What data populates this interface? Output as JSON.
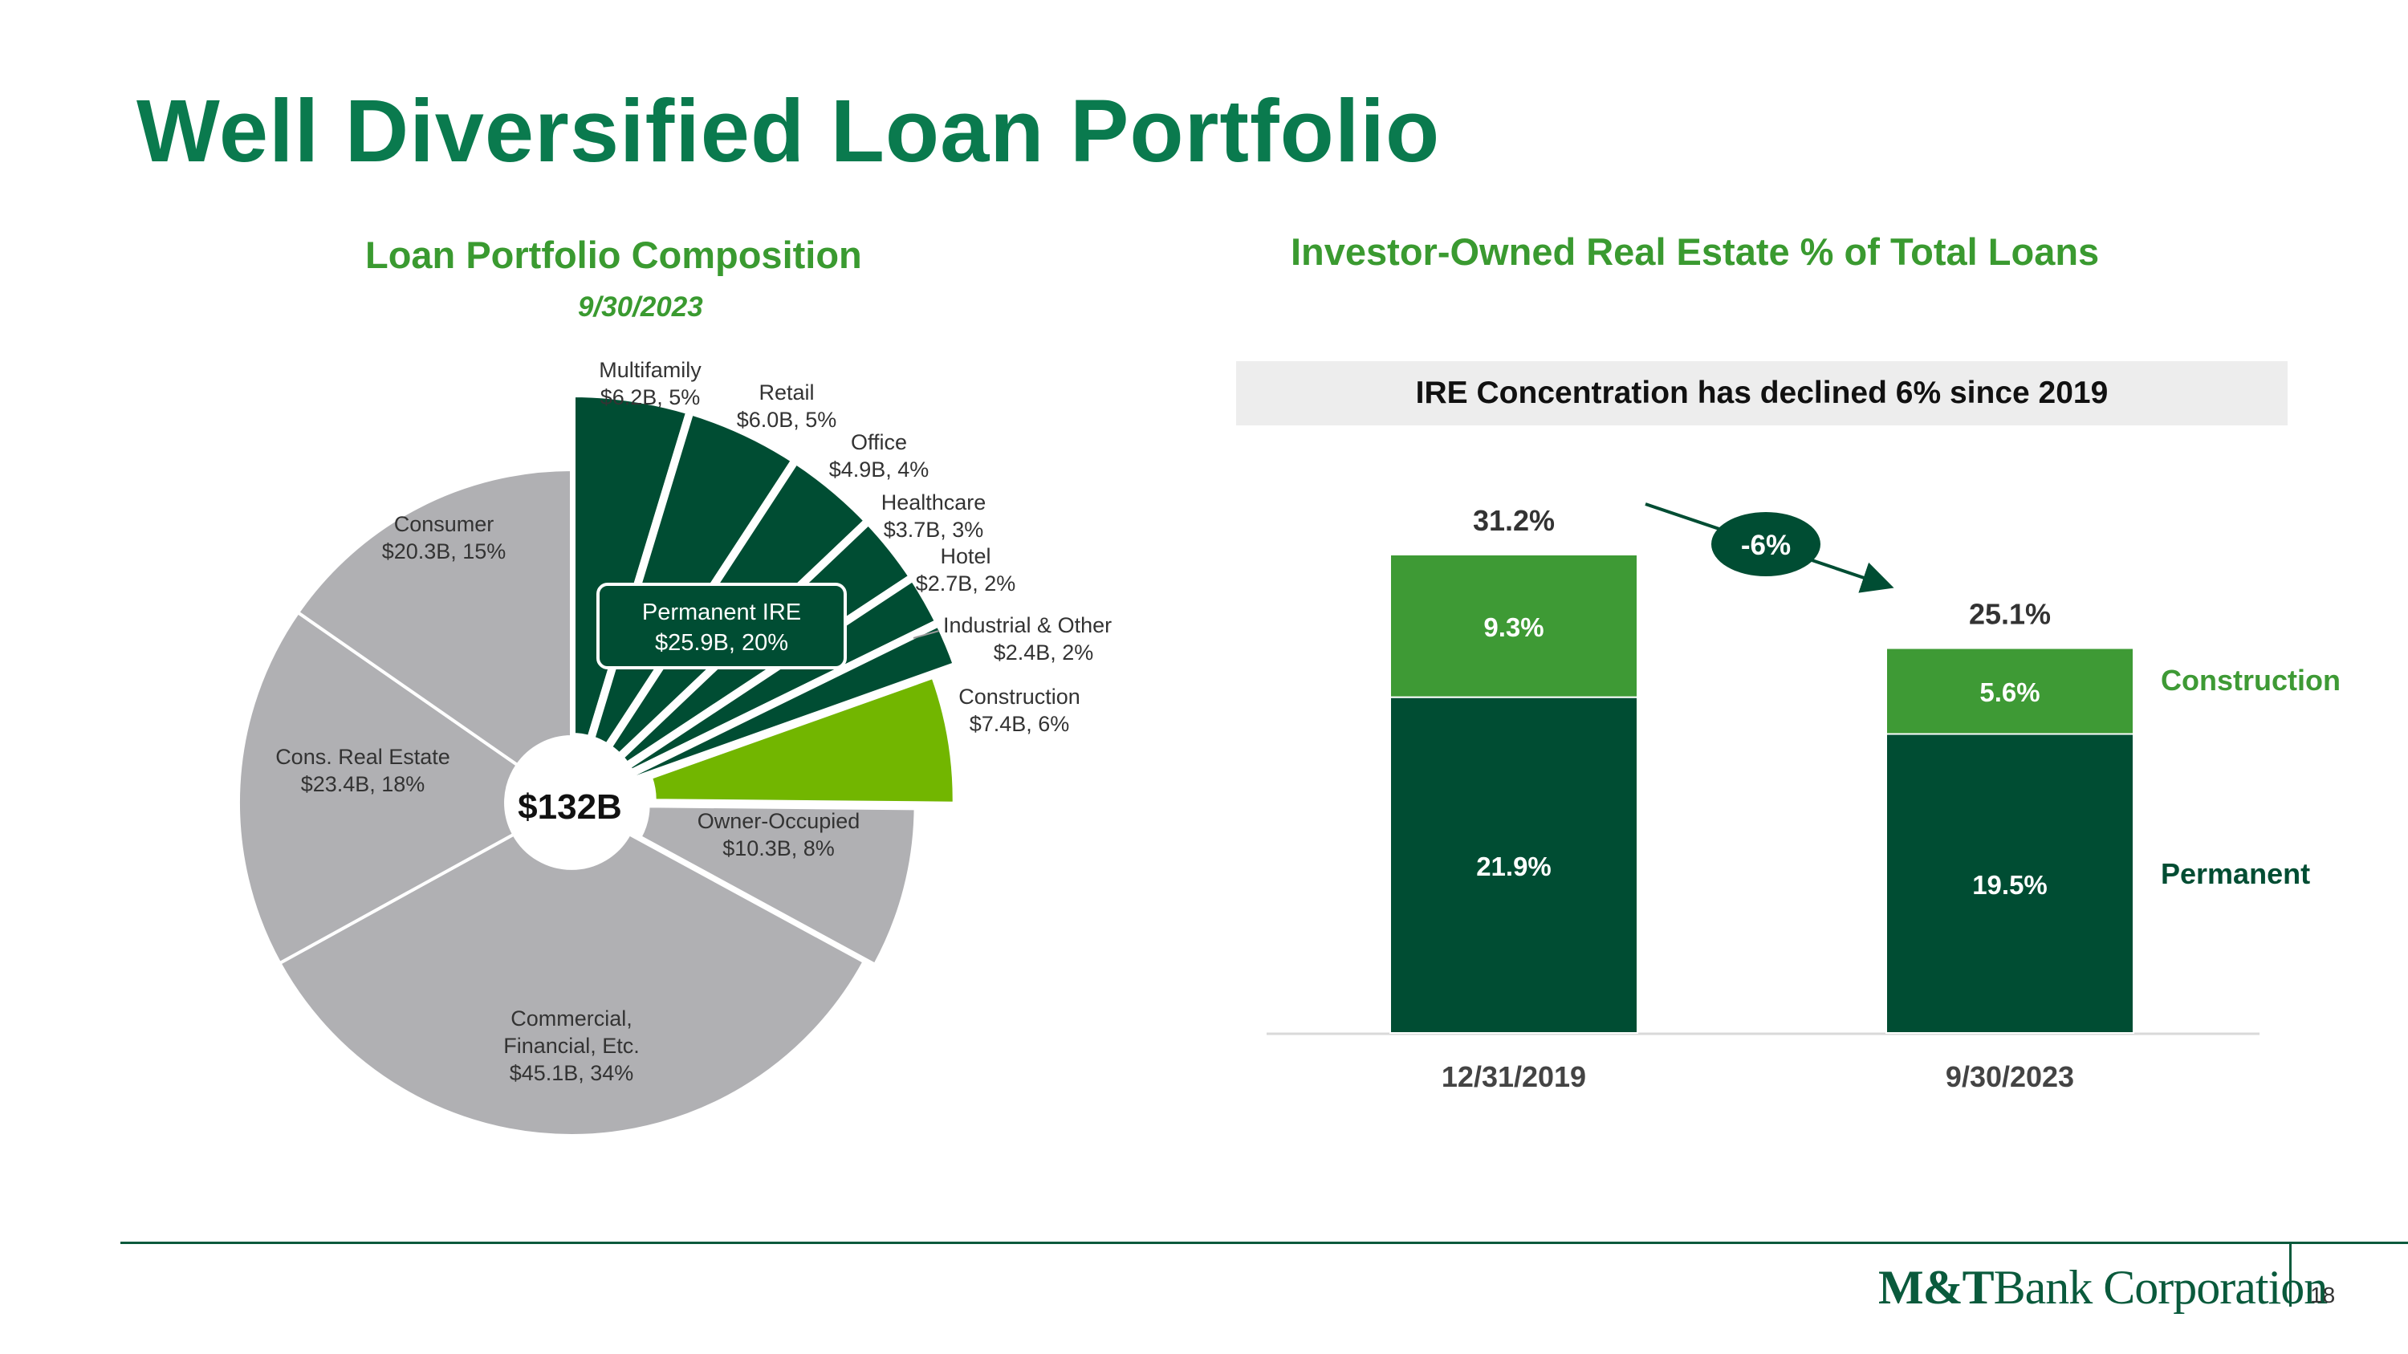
{
  "title": "Well Diversified Loan Portfolio",
  "colors": {
    "title": "#0a7a4e",
    "subtitle": "#3a9a30",
    "dark_green": "#004d33",
    "light_green": "#3e9a35",
    "lime": "#72b600",
    "gray": "#b0b0b3"
  },
  "footer": {
    "logo_bold": "M&T",
    "logo_text": "Bank Corporation",
    "page_number": "18"
  },
  "chart_data": [
    {
      "type": "pie",
      "title": "Loan Portfolio Composition",
      "subtitle": "9/30/2023",
      "center_label": "$132B",
      "group_label": {
        "name": "Permanent IRE",
        "value": "$25.9B, 20%"
      },
      "slices": [
        {
          "name": "Multifamily",
          "label": "$6.2B, 5%",
          "value": 6.2,
          "pct": 5,
          "group": "Permanent IRE",
          "color": "#004d33"
        },
        {
          "name": "Retail",
          "label": "$6.0B, 5%",
          "value": 6.0,
          "pct": 5,
          "group": "Permanent IRE",
          "color": "#004d33"
        },
        {
          "name": "Office",
          "label": "$4.9B, 4%",
          "value": 4.9,
          "pct": 4,
          "group": "Permanent IRE",
          "color": "#004d33"
        },
        {
          "name": "Healthcare",
          "label": "$3.7B, 3%",
          "value": 3.7,
          "pct": 3,
          "group": "Permanent IRE",
          "color": "#004d33"
        },
        {
          "name": "Hotel",
          "label": "$2.7B, 2%",
          "value": 2.7,
          "pct": 2,
          "group": "Permanent IRE",
          "color": "#004d33"
        },
        {
          "name": "Industrial & Other",
          "label": "$2.4B, 2%",
          "value": 2.4,
          "pct": 2,
          "group": "Permanent IRE",
          "color": "#004d33"
        },
        {
          "name": "Construction",
          "label": "$7.4B, 6%",
          "value": 7.4,
          "pct": 6,
          "color": "#72b600"
        },
        {
          "name": "Owner-Occupied",
          "label": "$10.3B, 8%",
          "value": 10.3,
          "pct": 8,
          "color": "#b0b0b3"
        },
        {
          "name": "Commercial, Financial, Etc.",
          "label": "$45.1B, 34%",
          "value": 45.1,
          "pct": 34,
          "color": "#b0b0b3"
        },
        {
          "name": "Cons. Real Estate",
          "label": "$23.4B, 18%",
          "value": 23.4,
          "pct": 18,
          "color": "#b0b0b3"
        },
        {
          "name": "Consumer",
          "label": "$20.3B, 15%",
          "value": 20.3,
          "pct": 15,
          "color": "#b0b0b3"
        }
      ]
    },
    {
      "type": "bar",
      "stacked": true,
      "title": "Investor-Owned Real Estate % of Total Loans",
      "banner": "IRE Concentration has declined 6% since 2019",
      "categories": [
        "12/31/2019",
        "9/30/2023"
      ],
      "totals": [
        "31.2%",
        "25.1%"
      ],
      "change_label": "-6%",
      "series": [
        {
          "name": "Permanent",
          "values": [
            21.9,
            19.5
          ],
          "labels": [
            "21.9%",
            "19.5%"
          ],
          "color": "#004d33"
        },
        {
          "name": "Construction",
          "values": [
            9.3,
            5.6
          ],
          "labels": [
            "9.3%",
            "5.6%"
          ],
          "color": "#3e9a35"
        }
      ],
      "ylim": [
        0,
        31.2
      ]
    }
  ]
}
